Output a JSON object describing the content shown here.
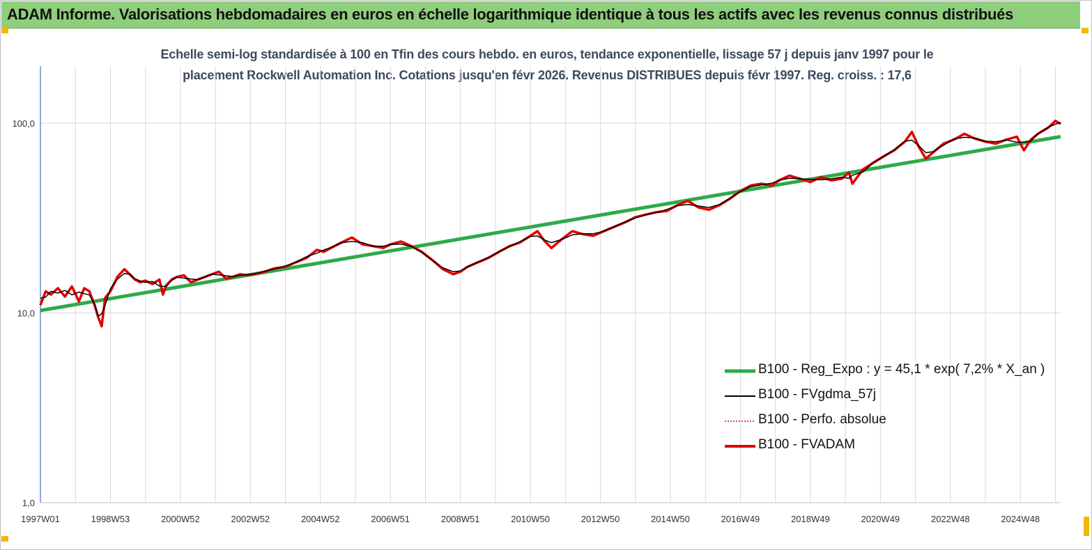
{
  "banner": {
    "title": "ADAM Informe. Valorisations hebdomadaires en euros en échelle logarithmique identique à tous les actifs avec les revenus connus distribués"
  },
  "colors": {
    "banner_bg": "#8fce7c",
    "trend": "#2eaa4a",
    "smoothed": "#000000",
    "perf": "#e00000",
    "fvadam": "#e00000",
    "grid": "#d9d9d9",
    "axis": "#4472c4"
  },
  "chart_data": {
    "type": "line",
    "title_line1": "Echelle semi-log standardisée à 100 en Tfin des cours hebdo. en euros, tendance exponentielle, lissage 57 j depuis janv 1997 pour le",
    "title_line2": "placement Rockwell Automation Inc. Cotations jusqu'en févr 2026. Revenus DISTRIBUES depuis févr 1997. Reg. croiss. : 17,6",
    "y_scale": "log",
    "ylim": [
      1,
      200
    ],
    "xlim": [
      1997.0,
      2026.15
    ],
    "y_ticks": [
      {
        "value": 1,
        "label": "1,0"
      },
      {
        "value": 10,
        "label": "10,0"
      },
      {
        "value": 100,
        "label": "100,0"
      }
    ],
    "x_ticks": [
      {
        "value": 1997.0,
        "label": "1997W01"
      },
      {
        "value": 1999.0,
        "label": "1998W53"
      },
      {
        "value": 2001.0,
        "label": "2000W52"
      },
      {
        "value": 2003.0,
        "label": "2002W52"
      },
      {
        "value": 2005.0,
        "label": "2004W52"
      },
      {
        "value": 2007.0,
        "label": "2006W51"
      },
      {
        "value": 2009.0,
        "label": "2008W51"
      },
      {
        "value": 2011.0,
        "label": "2010W50"
      },
      {
        "value": 2013.0,
        "label": "2012W50"
      },
      {
        "value": 2015.0,
        "label": "2014W50"
      },
      {
        "value": 2017.0,
        "label": "2016W49"
      },
      {
        "value": 2019.0,
        "label": "2018W49"
      },
      {
        "value": 2021.0,
        "label": "2020W49"
      },
      {
        "value": 2023.0,
        "label": "2022W48"
      },
      {
        "value": 2025.0,
        "label": "2024W48"
      }
    ],
    "grid": "vertical-annual-and-horizontal-decades",
    "legend_position": "bottom-right",
    "series": [
      {
        "name": "B100 - Reg_Expo : y = 45,1 *  exp( 7,2% *  X_an )",
        "style": "trend",
        "x": [
          1997.0,
          2026.15
        ],
        "y": [
          10.3,
          85.0
        ]
      },
      {
        "name": "B100 - FVgdma_57j",
        "style": "smoothed"
      },
      {
        "name": "B100 - Perfo. absolue",
        "style": "dotted"
      },
      {
        "name": "B100 - FVADAM",
        "style": "main",
        "x": [
          1997.0,
          1997.15,
          1997.3,
          1997.5,
          1997.7,
          1997.9,
          1998.1,
          1998.25,
          1998.4,
          1998.55,
          1998.65,
          1998.75,
          1998.85,
          1999.0,
          1999.2,
          1999.4,
          1999.55,
          1999.7,
          1999.85,
          2000.0,
          2000.2,
          2000.4,
          2000.5,
          2000.6,
          2000.75,
          2000.9,
          2001.1,
          2001.3,
          2001.5,
          2001.7,
          2001.9,
          2002.1,
          2002.3,
          2002.5,
          2002.7,
          2002.9,
          2003.1,
          2003.4,
          2003.7,
          2004.0,
          2004.3,
          2004.6,
          2004.9,
          2005.1,
          2005.3,
          2005.6,
          2005.9,
          2006.2,
          2006.5,
          2006.8,
          2007.0,
          2007.3,
          2007.6,
          2007.9,
          2008.2,
          2008.5,
          2008.8,
          2009.0,
          2009.2,
          2009.5,
          2009.8,
          2010.1,
          2010.4,
          2010.7,
          2011.0,
          2011.2,
          2011.4,
          2011.6,
          2011.9,
          2012.2,
          2012.5,
          2012.8,
          2013.1,
          2013.4,
          2013.7,
          2014.0,
          2014.3,
          2014.6,
          2014.9,
          2015.2,
          2015.5,
          2015.8,
          2016.1,
          2016.4,
          2016.7,
          2017.0,
          2017.3,
          2017.6,
          2017.9,
          2018.1,
          2018.4,
          2018.7,
          2019.0,
          2019.3,
          2019.6,
          2019.9,
          2020.1,
          2020.2,
          2020.5,
          2020.8,
          2021.1,
          2021.4,
          2021.7,
          2021.9,
          2022.1,
          2022.3,
          2022.5,
          2022.8,
          2023.1,
          2023.4,
          2023.7,
          2024.0,
          2024.3,
          2024.6,
          2024.9,
          2025.1,
          2025.3,
          2025.5,
          2025.8,
          2026.0,
          2026.15
        ],
        "y": [
          11.0,
          13.0,
          12.5,
          13.5,
          12.2,
          13.8,
          11.5,
          13.5,
          13.0,
          11.0,
          9.5,
          8.5,
          12.0,
          13.0,
          15.5,
          17.0,
          16.0,
          15.0,
          14.5,
          14.8,
          14.2,
          15.0,
          12.5,
          14.0,
          15.0,
          15.5,
          15.8,
          14.5,
          15.0,
          15.5,
          16.0,
          16.5,
          15.2,
          15.5,
          16.0,
          15.8,
          16.0,
          16.5,
          17.2,
          17.5,
          18.5,
          19.5,
          21.5,
          21.0,
          22.0,
          23.5,
          25.0,
          23.0,
          22.5,
          22.0,
          23.0,
          23.8,
          22.5,
          21.0,
          19.0,
          17.0,
          16.0,
          16.5,
          17.5,
          18.5,
          19.5,
          21.0,
          22.5,
          23.5,
          25.5,
          27.0,
          24.0,
          22.0,
          24.5,
          27.0,
          26.0,
          25.5,
          27.0,
          28.5,
          30.0,
          32.0,
          33.0,
          34.0,
          34.5,
          37.0,
          39.0,
          36.0,
          35.0,
          37.0,
          40.0,
          44.0,
          47.0,
          48.0,
          47.0,
          50.0,
          53.0,
          51.0,
          49.0,
          52.0,
          50.0,
          51.0,
          55.0,
          48.0,
          57.0,
          62.0,
          67.0,
          72.0,
          80.0,
          90.0,
          75.0,
          65.0,
          70.0,
          78.0,
          82.0,
          88.0,
          83.0,
          80.0,
          78.0,
          82.0,
          85.0,
          72.0,
          82.0,
          88.0,
          95.0,
          103.0,
          99.0
        ]
      }
    ]
  }
}
